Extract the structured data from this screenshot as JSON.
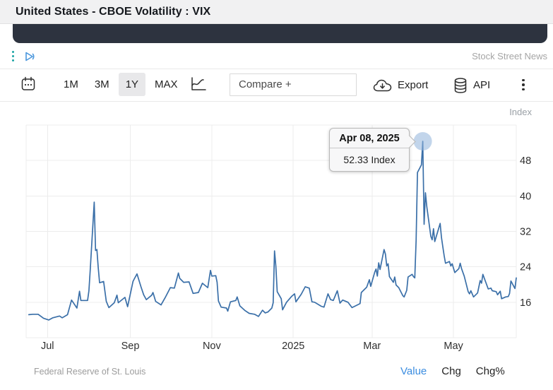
{
  "header": {
    "title": "United States - CBOE Volatility : VIX"
  },
  "ad_row": {
    "source_label": "Stock Street News"
  },
  "toolbar": {
    "ranges": [
      {
        "label": "1M",
        "selected": false
      },
      {
        "label": "3M",
        "selected": false
      },
      {
        "label": "1Y",
        "selected": true
      },
      {
        "label": "MAX",
        "selected": false
      }
    ],
    "compare_label": "Compare +",
    "export_label": "Export",
    "api_label": "API"
  },
  "chart": {
    "unit_label": "Index"
  },
  "tooltip": {
    "date": "Apr 08, 2025",
    "value": "52.33 Index"
  },
  "footer": {
    "source": "Federal Reserve of St. Louis",
    "modes": [
      {
        "label": "Value",
        "active": true
      },
      {
        "label": "Chg",
        "active": false
      },
      {
        "label": "Chg%",
        "active": false
      }
    ]
  },
  "colors": {
    "line": "#3a6fa8",
    "marker": "#8fb3da",
    "grid": "#ececec",
    "accent_blue": "#3b8de0",
    "media_strip": "#2d333f"
  },
  "chart_data": {
    "type": "line",
    "title": "United States - CBOE Volatility : VIX",
    "ylabel": "Index",
    "grid": true,
    "x_range": [
      "2024-06-15",
      "2025-06-17"
    ],
    "ylim": [
      8,
      56
    ],
    "y_step": 8,
    "y_ticks": [
      16,
      24,
      32,
      40,
      48
    ],
    "x_ticks": [
      {
        "date": "2024-07-01",
        "label": "Jul"
      },
      {
        "date": "2024-09-01",
        "label": "Sep"
      },
      {
        "date": "2024-11-01",
        "label": "Nov"
      },
      {
        "date": "2025-01-01",
        "label": "2025"
      },
      {
        "date": "2025-03-01",
        "label": "Mar"
      },
      {
        "date": "2025-05-01",
        "label": "May"
      }
    ],
    "highlight": {
      "date": "2025-04-08",
      "value": 52.33,
      "label": "52.33 Index"
    },
    "series": [
      {
        "name": "VIX",
        "points": [
          [
            "2024-06-17",
            13.2
          ],
          [
            "2024-06-20",
            13.3
          ],
          [
            "2024-06-24",
            13.3
          ],
          [
            "2024-06-28",
            12.4
          ],
          [
            "2024-07-02",
            12.0
          ],
          [
            "2024-07-05",
            12.5
          ],
          [
            "2024-07-10",
            12.9
          ],
          [
            "2024-07-12",
            12.5
          ],
          [
            "2024-07-16",
            13.2
          ],
          [
            "2024-07-19",
            16.5
          ],
          [
            "2024-07-23",
            14.7
          ],
          [
            "2024-07-25",
            18.5
          ],
          [
            "2024-07-26",
            16.4
          ],
          [
            "2024-07-31",
            16.4
          ],
          [
            "2024-08-01",
            18.6
          ],
          [
            "2024-08-02",
            23.4
          ],
          [
            "2024-08-05",
            38.6
          ],
          [
            "2024-08-06",
            27.7
          ],
          [
            "2024-08-07",
            27.9
          ],
          [
            "2024-08-08",
            23.8
          ],
          [
            "2024-08-09",
            20.4
          ],
          [
            "2024-08-12",
            20.7
          ],
          [
            "2024-08-14",
            16.2
          ],
          [
            "2024-08-16",
            14.8
          ],
          [
            "2024-08-20",
            15.9
          ],
          [
            "2024-08-22",
            17.6
          ],
          [
            "2024-08-23",
            15.9
          ],
          [
            "2024-08-28",
            17.1
          ],
          [
            "2024-08-30",
            15.0
          ],
          [
            "2024-09-03",
            20.7
          ],
          [
            "2024-09-04",
            21.3
          ],
          [
            "2024-09-06",
            22.4
          ],
          [
            "2024-09-09",
            19.5
          ],
          [
            "2024-09-11",
            17.7
          ],
          [
            "2024-09-13",
            16.6
          ],
          [
            "2024-09-17",
            17.6
          ],
          [
            "2024-09-18",
            18.2
          ],
          [
            "2024-09-20",
            16.2
          ],
          [
            "2024-09-24",
            15.4
          ],
          [
            "2024-09-27",
            17.0
          ],
          [
            "2024-10-01",
            19.3
          ],
          [
            "2024-10-04",
            19.2
          ],
          [
            "2024-10-07",
            22.6
          ],
          [
            "2024-10-08",
            21.4
          ],
          [
            "2024-10-11",
            20.5
          ],
          [
            "2024-10-15",
            20.6
          ],
          [
            "2024-10-18",
            18.0
          ],
          [
            "2024-10-22",
            18.2
          ],
          [
            "2024-10-25",
            20.3
          ],
          [
            "2024-10-29",
            19.3
          ],
          [
            "2024-10-31",
            23.2
          ],
          [
            "2024-11-01",
            21.9
          ],
          [
            "2024-11-04",
            22.0
          ],
          [
            "2024-11-05",
            20.5
          ],
          [
            "2024-11-06",
            16.3
          ],
          [
            "2024-11-08",
            14.9
          ],
          [
            "2024-11-12",
            14.7
          ],
          [
            "2024-11-13",
            14.0
          ],
          [
            "2024-11-15",
            16.1
          ],
          [
            "2024-11-19",
            16.4
          ],
          [
            "2024-11-20",
            17.2
          ],
          [
            "2024-11-22",
            15.2
          ],
          [
            "2024-11-26",
            14.1
          ],
          [
            "2024-11-29",
            13.5
          ],
          [
            "2024-12-03",
            13.3
          ],
          [
            "2024-12-06",
            12.8
          ],
          [
            "2024-12-09",
            14.2
          ],
          [
            "2024-12-11",
            13.6
          ],
          [
            "2024-12-13",
            13.8
          ],
          [
            "2024-12-16",
            14.7
          ],
          [
            "2024-12-17",
            15.9
          ],
          [
            "2024-12-18",
            27.6
          ],
          [
            "2024-12-19",
            24.1
          ],
          [
            "2024-12-20",
            18.4
          ],
          [
            "2024-12-23",
            16.8
          ],
          [
            "2024-12-24",
            14.3
          ],
          [
            "2024-12-27",
            16.0
          ],
          [
            "2024-12-31",
            17.4
          ],
          [
            "2025-01-02",
            17.9
          ],
          [
            "2025-01-03",
            16.1
          ],
          [
            "2025-01-07",
            17.8
          ],
          [
            "2025-01-10",
            19.5
          ],
          [
            "2025-01-13",
            19.2
          ],
          [
            "2025-01-15",
            16.1
          ],
          [
            "2025-01-17",
            16.0
          ],
          [
            "2025-01-22",
            15.1
          ],
          [
            "2025-01-24",
            14.9
          ],
          [
            "2025-01-27",
            17.9
          ],
          [
            "2025-01-29",
            16.6
          ],
          [
            "2025-01-31",
            16.4
          ],
          [
            "2025-02-03",
            18.6
          ],
          [
            "2025-02-05",
            15.8
          ],
          [
            "2025-02-07",
            16.5
          ],
          [
            "2025-02-11",
            16.0
          ],
          [
            "2025-02-14",
            14.8
          ],
          [
            "2025-02-18",
            15.4
          ],
          [
            "2025-02-20",
            15.7
          ],
          [
            "2025-02-21",
            18.2
          ],
          [
            "2025-02-25",
            19.4
          ],
          [
            "2025-02-27",
            21.1
          ],
          [
            "2025-02-28",
            19.6
          ],
          [
            "2025-03-03",
            22.8
          ],
          [
            "2025-03-04",
            23.5
          ],
          [
            "2025-03-05",
            21.9
          ],
          [
            "2025-03-06",
            24.9
          ],
          [
            "2025-03-07",
            23.4
          ],
          [
            "2025-03-10",
            27.9
          ],
          [
            "2025-03-11",
            26.9
          ],
          [
            "2025-03-12",
            24.2
          ],
          [
            "2025-03-13",
            24.7
          ],
          [
            "2025-03-14",
            21.8
          ],
          [
            "2025-03-17",
            20.5
          ],
          [
            "2025-03-18",
            21.7
          ],
          [
            "2025-03-19",
            19.9
          ],
          [
            "2025-03-21",
            19.3
          ],
          [
            "2025-03-24",
            17.5
          ],
          [
            "2025-03-25",
            17.2
          ],
          [
            "2025-03-27",
            18.7
          ],
          [
            "2025-03-28",
            21.7
          ],
          [
            "2025-03-31",
            22.3
          ],
          [
            "2025-04-01",
            21.8
          ],
          [
            "2025-04-02",
            21.5
          ],
          [
            "2025-04-03",
            30.0
          ],
          [
            "2025-04-04",
            45.3
          ],
          [
            "2025-04-07",
            47.0
          ],
          [
            "2025-04-08",
            52.33
          ],
          [
            "2025-04-09",
            33.6
          ],
          [
            "2025-04-10",
            40.7
          ],
          [
            "2025-04-11",
            37.6
          ],
          [
            "2025-04-14",
            30.9
          ],
          [
            "2025-04-15",
            30.1
          ],
          [
            "2025-04-16",
            32.6
          ],
          [
            "2025-04-17",
            29.7
          ],
          [
            "2025-04-21",
            33.8
          ],
          [
            "2025-04-22",
            30.6
          ],
          [
            "2025-04-23",
            28.5
          ],
          [
            "2025-04-24",
            26.5
          ],
          [
            "2025-04-25",
            24.8
          ],
          [
            "2025-04-28",
            25.2
          ],
          [
            "2025-04-29",
            24.2
          ],
          [
            "2025-04-30",
            24.7
          ],
          [
            "2025-05-02",
            22.7
          ],
          [
            "2025-05-05",
            23.6
          ],
          [
            "2025-05-06",
            24.8
          ],
          [
            "2025-05-07",
            23.6
          ],
          [
            "2025-05-09",
            21.9
          ],
          [
            "2025-05-12",
            18.4
          ],
          [
            "2025-05-13",
            17.9
          ],
          [
            "2025-05-14",
            18.6
          ],
          [
            "2025-05-16",
            17.2
          ],
          [
            "2025-05-19",
            18.1
          ],
          [
            "2025-05-21",
            20.9
          ],
          [
            "2025-05-22",
            20.3
          ],
          [
            "2025-05-23",
            22.3
          ],
          [
            "2025-05-27",
            19.0
          ],
          [
            "2025-05-29",
            19.2
          ],
          [
            "2025-05-30",
            18.6
          ],
          [
            "2025-06-02",
            18.4
          ],
          [
            "2025-06-03",
            17.7
          ],
          [
            "2025-06-05",
            18.5
          ],
          [
            "2025-06-06",
            16.8
          ],
          [
            "2025-06-09",
            17.2
          ],
          [
            "2025-06-11",
            17.3
          ],
          [
            "2025-06-12",
            18.0
          ],
          [
            "2025-06-13",
            20.8
          ],
          [
            "2025-06-16",
            19.1
          ],
          [
            "2025-06-17",
            21.5
          ]
        ]
      }
    ]
  }
}
